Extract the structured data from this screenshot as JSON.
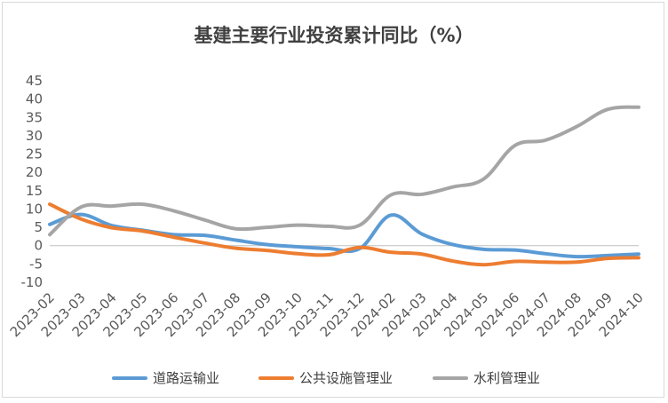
{
  "chart_data": {
    "type": "line",
    "title": "基建主要行业投资累计同比（%）",
    "xlabel": "",
    "ylabel": "",
    "ylim": [
      -10,
      45
    ],
    "yticks": [
      -10,
      -5,
      0,
      5,
      10,
      15,
      20,
      25,
      30,
      35,
      40,
      45
    ],
    "grid": false,
    "legend": "bottom",
    "categories": [
      "2023-02",
      "2023-03",
      "2023-04",
      "2023-05",
      "2023-06",
      "2023-07",
      "2023-08",
      "2023-09",
      "2023-10",
      "2023-11",
      "2023-12",
      "2024-02",
      "2024-03",
      "2024-04",
      "2024-05",
      "2024-06",
      "2024-07",
      "2024-08",
      "2024-09",
      "2024-10"
    ],
    "series": [
      {
        "name": "道路运输业",
        "color": "#5b9bd5",
        "values": [
          5.8,
          8.5,
          5.5,
          4.2,
          3.0,
          2.8,
          1.5,
          0.3,
          -0.3,
          -0.8,
          -0.8,
          8.3,
          3.2,
          0.3,
          -1.0,
          -1.2,
          -2.2,
          -3.0,
          -2.7,
          -2.3
        ]
      },
      {
        "name": "公共设施管理业",
        "color": "#ed7d31",
        "values": [
          11.3,
          7.3,
          4.9,
          4.0,
          2.3,
          0.7,
          -0.7,
          -1.3,
          -2.2,
          -2.5,
          -0.5,
          -1.8,
          -2.3,
          -4.2,
          -5.2,
          -4.3,
          -4.5,
          -4.5,
          -3.5,
          -3.3
        ]
      },
      {
        "name": "水利管理业",
        "color": "#a5a5a5",
        "values": [
          3.0,
          10.5,
          10.8,
          11.3,
          9.5,
          7.0,
          4.6,
          5.0,
          5.6,
          5.3,
          5.6,
          13.8,
          14.0,
          16.0,
          18.2,
          27.3,
          28.8,
          32.5,
          37.2,
          37.8
        ]
      }
    ]
  }
}
